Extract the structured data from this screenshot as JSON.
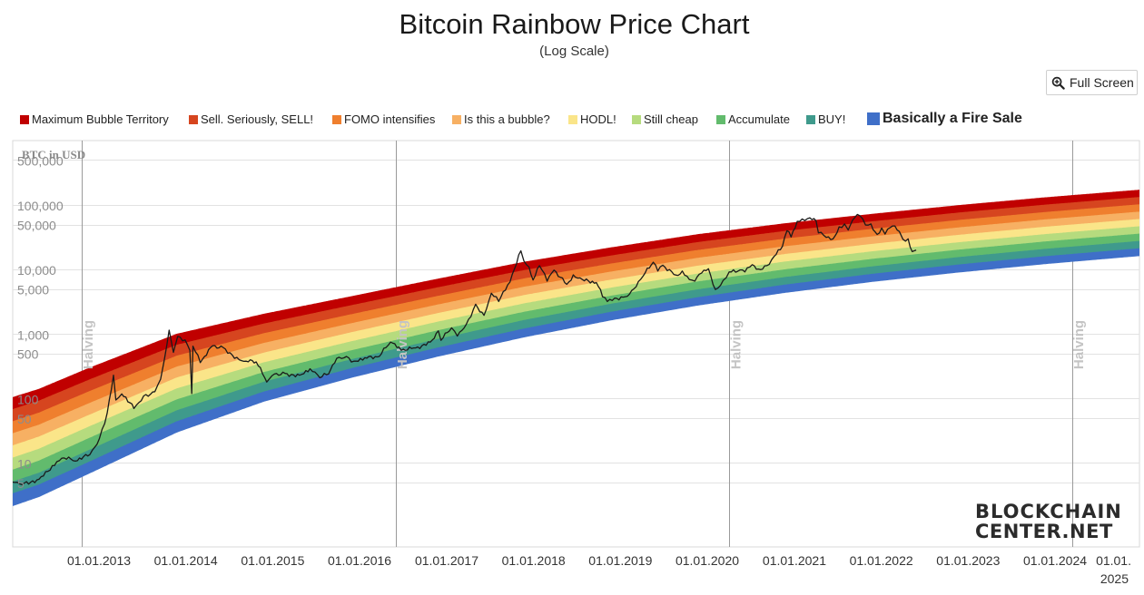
{
  "chart_data": {
    "type": "area",
    "title": "Bitcoin Rainbow Price Chart",
    "subtitle": "(Log Scale)",
    "ylabel": "BTC in USD",
    "y_scale": "log",
    "ylim": [
      0.5,
      1000000
    ],
    "xlim": [
      "2011-12-10",
      "2025-02-10"
    ],
    "x_ticks": [
      "01.01.2013",
      "01.01.2014",
      "01.01.2015",
      "01.01.2016",
      "01.01.2017",
      "01.01.2018",
      "01.01.2019",
      "01.01.2020",
      "01.01.2021",
      "01.01.2022",
      "01.01.2023",
      "01.01.2024",
      "01.01.2025"
    ],
    "y_ticks": [
      {
        "value": 5,
        "label": "5"
      },
      {
        "value": 10,
        "label": "10"
      },
      {
        "value": 50,
        "label": "50"
      },
      {
        "value": 100,
        "label": "100"
      },
      {
        "value": 500,
        "label": "500"
      },
      {
        "value": 1000,
        "label": "1,000"
      },
      {
        "value": 5000,
        "label": "5,000"
      },
      {
        "value": 10000,
        "label": "10,000"
      },
      {
        "value": 50000,
        "label": "50,000"
      },
      {
        "value": 100000,
        "label": "100,000"
      },
      {
        "value": 500000,
        "label": "500,000"
      }
    ],
    "grid": true,
    "legend_position": "top",
    "bands": [
      {
        "name": "Maximum Bubble Territory",
        "color": "#c00000"
      },
      {
        "name": "Sell. Seriously, SELL!",
        "color": "#d6451f"
      },
      {
        "name": "FOMO intensifies",
        "color": "#ef7f2e"
      },
      {
        "name": "Is this a bubble?",
        "color": "#f7b063"
      },
      {
        "name": "HODL!",
        "color": "#fae589"
      },
      {
        "name": "Still cheap",
        "color": "#b6db7e"
      },
      {
        "name": "Accumulate",
        "color": "#62bb6d"
      },
      {
        "name": "BUY!",
        "color": "#3f9a8c"
      },
      {
        "name": "Basically a Fire Sale",
        "color": "#3f6fc8"
      }
    ],
    "band_edges": [
      {
        "date": "2011-12-10",
        "values": [
          1.8,
          2.8,
          4.3,
          6.5,
          10,
          15.5,
          24,
          37,
          57,
          88
        ]
      },
      {
        "date": "2012-06-01",
        "values": [
          3,
          4.6,
          7,
          10.8,
          16.5,
          25.5,
          39,
          60,
          92,
          140
        ]
      },
      {
        "date": "2013-01-01",
        "values": [
          7,
          10.5,
          16,
          24.5,
          37,
          56,
          85,
          130,
          197,
          300
        ]
      },
      {
        "date": "2014-01-01",
        "values": [
          30,
          44,
          65,
          96,
          142,
          210,
          310,
          458,
          676,
          1000
        ]
      },
      {
        "date": "2015-01-01",
        "values": [
          90,
          127,
          180,
          255,
          360,
          510,
          720,
          1020,
          1440,
          2040
        ]
      },
      {
        "date": "2016-01-01",
        "values": [
          210,
          290,
          400,
          550,
          760,
          1050,
          1450,
          2000,
          2760,
          3800
        ]
      },
      {
        "date": "2017-01-01",
        "values": [
          450,
          610,
          830,
          1130,
          1540,
          2090,
          2840,
          3860,
          5250,
          7140
        ]
      },
      {
        "date": "2018-01-01",
        "values": [
          900,
          1210,
          1640,
          2200,
          2970,
          4000,
          5380,
          7240,
          9750,
          13100
        ]
      },
      {
        "date": "2019-01-01",
        "values": [
          1650,
          2200,
          2930,
          3900,
          5200,
          6930,
          9240,
          12300,
          16400,
          21900
        ]
      },
      {
        "date": "2020-01-01",
        "values": [
          2800,
          3700,
          4900,
          6500,
          8600,
          11400,
          15100,
          20000,
          26500,
          35100
        ]
      },
      {
        "date": "2021-01-01",
        "values": [
          4400,
          5800,
          7600,
          10000,
          13200,
          17300,
          22800,
          30000,
          39400,
          51800
        ]
      },
      {
        "date": "2022-01-01",
        "values": [
          6500,
          8500,
          11100,
          14500,
          19000,
          24800,
          32400,
          42400,
          55400,
          72400
        ]
      },
      {
        "date": "2023-01-01",
        "values": [
          9100,
          11900,
          15500,
          20200,
          26300,
          34300,
          44700,
          58300,
          76000,
          99000
        ]
      },
      {
        "date": "2024-01-01",
        "values": [
          12300,
          16000,
          20800,
          27100,
          35200,
          45800,
          59600,
          77500,
          100800,
          131000
        ]
      },
      {
        "date": "2025-02-10",
        "values": [
          16500,
          21400,
          27800,
          36100,
          46900,
          60900,
          79100,
          102800,
          133500,
          173000
        ]
      }
    ],
    "price_series": {
      "name": "",
      "color": "#1a1a1a",
      "points": [
        [
          "2011-12-10",
          3.0
        ],
        [
          "2012-01-15",
          6.3
        ],
        [
          "2012-02-20",
          5.0
        ],
        [
          "2012-04-01",
          4.9
        ],
        [
          "2012-06-01",
          5.6
        ],
        [
          "2012-08-15",
          10.5
        ],
        [
          "2012-09-15",
          12.0
        ],
        [
          "2012-11-01",
          10.7
        ],
        [
          "2013-01-01",
          13.5
        ],
        [
          "2013-02-10",
          24
        ],
        [
          "2013-03-15",
          60
        ],
        [
          "2013-04-10",
          230
        ],
        [
          "2013-04-20",
          95
        ],
        [
          "2013-05-15",
          118
        ],
        [
          "2013-07-05",
          70
        ],
        [
          "2013-08-15",
          110
        ],
        [
          "2013-10-01",
          128
        ],
        [
          "2013-10-25",
          200
        ],
        [
          "2013-11-10",
          400
        ],
        [
          "2013-11-30",
          1150
        ],
        [
          "2013-12-18",
          520
        ],
        [
          "2014-01-05",
          920
        ],
        [
          "2014-02-05",
          810
        ],
        [
          "2014-02-25",
          560
        ],
        [
          "2014-03-05",
          120
        ],
        [
          "2014-03-10",
          650
        ],
        [
          "2014-04-10",
          360
        ],
        [
          "2014-06-01",
          660
        ],
        [
          "2014-07-15",
          620
        ],
        [
          "2014-09-20",
          400
        ],
        [
          "2014-10-20",
          380
        ],
        [
          "2014-12-01",
          370
        ],
        [
          "2015-01-14",
          180
        ],
        [
          "2015-02-15",
          240
        ],
        [
          "2015-04-01",
          245
        ],
        [
          "2015-06-01",
          230
        ],
        [
          "2015-07-15",
          290
        ],
        [
          "2015-08-25",
          210
        ],
        [
          "2015-10-01",
          240
        ],
        [
          "2015-11-04",
          420
        ],
        [
          "2015-12-15",
          450
        ],
        [
          "2016-01-15",
          380
        ],
        [
          "2016-03-01",
          430
        ],
        [
          "2016-05-01",
          450
        ],
        [
          "2016-06-17",
          750
        ],
        [
          "2016-08-01",
          560
        ],
        [
          "2016-10-01",
          610
        ],
        [
          "2016-12-01",
          750
        ],
        [
          "2017-01-04",
          1120
        ],
        [
          "2017-01-15",
          800
        ],
        [
          "2017-03-01",
          1250
        ],
        [
          "2017-03-25",
          930
        ],
        [
          "2017-05-01",
          1400
        ],
        [
          "2017-06-10",
          2900
        ],
        [
          "2017-07-15",
          1950
        ],
        [
          "2017-08-15",
          4300
        ],
        [
          "2017-09-15",
          3200
        ],
        [
          "2017-11-01",
          6400
        ],
        [
          "2017-12-17",
          19500
        ],
        [
          "2017-12-30",
          13500
        ],
        [
          "2018-01-20",
          11000
        ],
        [
          "2018-02-06",
          6900
        ],
        [
          "2018-03-05",
          11500
        ],
        [
          "2018-04-06",
          6600
        ],
        [
          "2018-05-05",
          9800
        ],
        [
          "2018-06-28",
          5900
        ],
        [
          "2018-07-25",
          8300
        ],
        [
          "2018-09-01",
          7000
        ],
        [
          "2018-10-30",
          6300
        ],
        [
          "2018-11-25",
          3800
        ],
        [
          "2018-12-15",
          3200
        ],
        [
          "2019-01-15",
          3600
        ],
        [
          "2019-03-01",
          3800
        ],
        [
          "2019-04-05",
          5000
        ],
        [
          "2019-05-15",
          8000
        ],
        [
          "2019-06-26",
          13000
        ],
        [
          "2019-07-15",
          9500
        ],
        [
          "2019-08-05",
          11700
        ],
        [
          "2019-09-30",
          8200
        ],
        [
          "2019-10-26",
          9500
        ],
        [
          "2019-11-25",
          7000
        ],
        [
          "2019-12-18",
          6600
        ],
        [
          "2020-01-15",
          8800
        ],
        [
          "2020-02-13",
          10300
        ],
        [
          "2020-03-13",
          4900
        ],
        [
          "2020-04-15",
          6800
        ],
        [
          "2020-05-10",
          9200
        ],
        [
          "2020-06-15",
          9400
        ],
        [
          "2020-07-15",
          9200
        ],
        [
          "2020-08-15",
          11900
        ],
        [
          "2020-09-10",
          10200
        ],
        [
          "2020-10-15",
          11500
        ],
        [
          "2020-11-15",
          16000
        ],
        [
          "2020-12-20",
          23000
        ],
        [
          "2021-01-08",
          40000
        ],
        [
          "2021-01-25",
          32000
        ],
        [
          "2021-02-20",
          56000
        ],
        [
          "2021-03-13",
          61000
        ],
        [
          "2021-04-14",
          63500
        ],
        [
          "2021-05-10",
          57000
        ],
        [
          "2021-05-20",
          37000
        ],
        [
          "2021-06-22",
          31500
        ],
        [
          "2021-07-20",
          29800
        ],
        [
          "2021-08-15",
          46000
        ],
        [
          "2021-09-07",
          51000
        ],
        [
          "2021-09-22",
          41000
        ],
        [
          "2021-10-20",
          64000
        ],
        [
          "2021-11-10",
          68500
        ],
        [
          "2021-12-04",
          49000
        ],
        [
          "2021-12-27",
          51000
        ],
        [
          "2022-01-22",
          35000
        ],
        [
          "2022-02-10",
          44000
        ],
        [
          "2022-02-24",
          35500
        ],
        [
          "2022-03-28",
          47500
        ],
        [
          "2022-04-25",
          39000
        ],
        [
          "2022-05-10",
          29500
        ],
        [
          "2022-06-01",
          30000
        ],
        [
          "2022-06-18",
          19000
        ],
        [
          "2022-07-05",
          20000
        ]
      ]
    },
    "halvings": [
      {
        "date": "2012-11-28",
        "label": "Halving"
      },
      {
        "date": "2016-07-09",
        "label": "Halving"
      },
      {
        "date": "2020-05-11",
        "label": "Halving"
      },
      {
        "date": "2024-04-20",
        "label": "Halving"
      }
    ]
  },
  "controls": {
    "full_screen_label": "Full Screen",
    "zoom_icon": "magnifier-plus-icon"
  },
  "branding": {
    "logo_line1": "BLOCKCHAIN",
    "logo_line2": "CENTER.NET"
  }
}
